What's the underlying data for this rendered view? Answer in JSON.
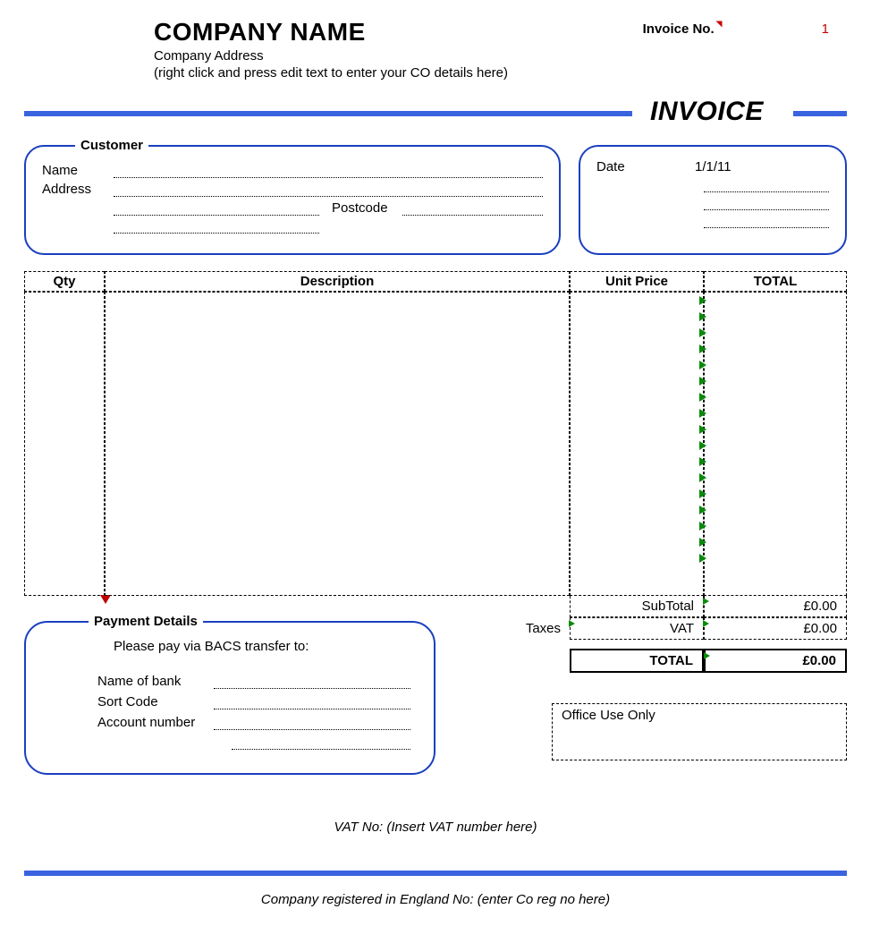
{
  "colors": {
    "rule_blue": "#3a63e0",
    "box_border_blue": "#1a3fbf",
    "accent_red": "#c00000",
    "tri_green": "#0a8a0a",
    "background": "#ffffff",
    "text": "#000000"
  },
  "header": {
    "company_name": "COMPANY NAME",
    "company_address": "Company Address",
    "company_hint": "(right click and press edit text to enter your CO details here)",
    "invoice_no_label": "Invoice No.",
    "invoice_no_value": "1"
  },
  "title": "INVOICE",
  "customer": {
    "legend": "Customer",
    "name_label": "Name",
    "address_label": "Address",
    "postcode_label": "Postcode"
  },
  "date_box": {
    "label": "Date",
    "value": "1/1/11"
  },
  "table": {
    "columns": [
      "Qty",
      "Description",
      "Unit Price",
      "TOTAL"
    ],
    "row_count": 17
  },
  "totals": {
    "subtotal_label": "SubTotal",
    "subtotal_value": "£0.00",
    "taxes_label": "Taxes",
    "vat_label": "VAT",
    "vat_value": "£0.00",
    "total_label": "TOTAL",
    "total_value": "£0.00"
  },
  "payment": {
    "legend": "Payment Details",
    "instruction": "Please pay via BACS transfer to:",
    "bank_label": "Name of bank",
    "sort_label": "Sort Code",
    "acct_label": "Account number"
  },
  "office": {
    "label": "Office Use Only"
  },
  "vat_line": "VAT No: (Insert VAT number here)",
  "footer": "Company registered in England No: (enter Co reg no here)"
}
